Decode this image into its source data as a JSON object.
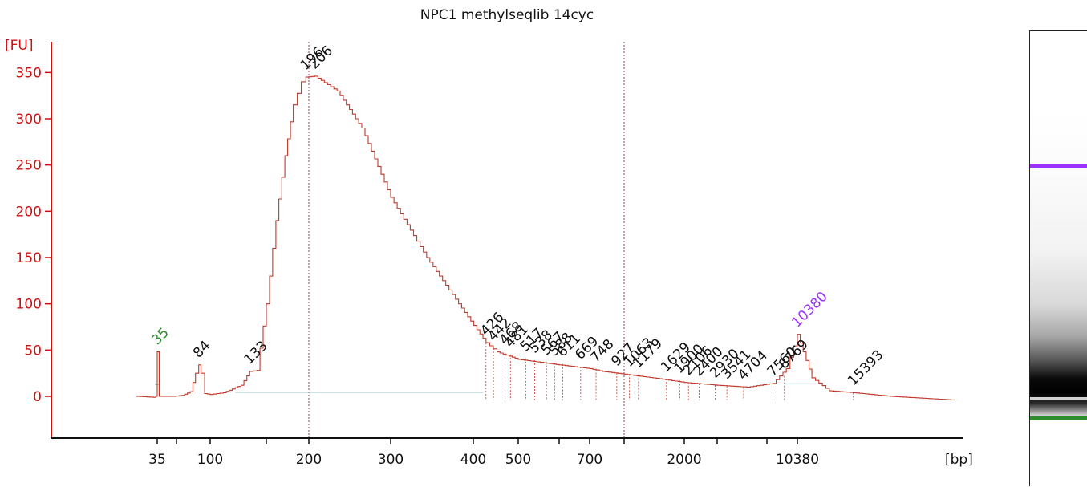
{
  "chart_data": {
    "type": "line",
    "title": "NPC1 methylseqlib 14cyc",
    "ylabel": "[FU]",
    "xlabel": "[bp]",
    "ylim": [
      -45,
      370
    ],
    "yticks": [
      0,
      50,
      100,
      150,
      200,
      250,
      300,
      350
    ],
    "x_scale": "non-linear (electrophoresis migration)",
    "xtick_labels": [
      "35",
      "100",
      "200",
      "300",
      "400",
      "500",
      "700",
      "2000",
      "10380"
    ],
    "xtick_marks_bp": [
      35,
      60,
      100,
      150,
      200,
      300,
      400,
      500,
      600,
      700,
      1000,
      2000,
      3000,
      7000,
      10380
    ],
    "guide_lines_bp": [
      200,
      1000
    ],
    "series": [
      {
        "color": "#c0392b",
        "points_bp_fu": [
          [
            15,
            0
          ],
          [
            30,
            -1
          ],
          [
            33,
            0
          ],
          [
            35,
            48
          ],
          [
            37,
            0
          ],
          [
            55,
            0
          ],
          [
            65,
            1
          ],
          [
            74,
            5
          ],
          [
            80,
            25
          ],
          [
            84,
            34
          ],
          [
            87,
            25
          ],
          [
            92,
            3
          ],
          [
            100,
            2
          ],
          [
            110,
            4
          ],
          [
            125,
            12
          ],
          [
            133,
            27
          ],
          [
            140,
            28
          ],
          [
            150,
            100
          ],
          [
            160,
            190
          ],
          [
            170,
            260
          ],
          [
            180,
            315
          ],
          [
            190,
            340
          ],
          [
            196,
            345
          ],
          [
            206,
            346
          ],
          [
            230,
            330
          ],
          [
            260,
            290
          ],
          [
            300,
            215
          ],
          [
            340,
            150
          ],
          [
            380,
            100
          ],
          [
            426,
            58
          ],
          [
            450,
            48
          ],
          [
            500,
            40
          ],
          [
            600,
            34
          ],
          [
            700,
            30
          ],
          [
            800,
            27
          ],
          [
            1000,
            24
          ],
          [
            1500,
            19
          ],
          [
            2000,
            15
          ],
          [
            3000,
            12
          ],
          [
            5000,
            10
          ],
          [
            7560,
            14
          ],
          [
            9000,
            30
          ],
          [
            10380,
            67
          ],
          [
            11500,
            20
          ],
          [
            13000,
            6
          ],
          [
            15393,
            4
          ],
          [
            20000,
            0
          ],
          [
            30000,
            -4
          ]
        ]
      }
    ],
    "marker": {
      "lower": "35",
      "upper": "10380",
      "lower_color": "#2e8b2e",
      "upper_color": "#9b30ff"
    },
    "peak_labels": [
      {
        "text": "35",
        "bp": 35,
        "fu": 48,
        "color": "#2e8b2e"
      },
      {
        "text": "84",
        "bp": 84,
        "fu": 34,
        "color": "#111111"
      },
      {
        "text": "133",
        "bp": 133,
        "fu": 27,
        "color": "#111111"
      },
      {
        "text": "196",
        "bp": 196,
        "fu": 345,
        "color": "#111111"
      },
      {
        "text": "206",
        "bp": 206,
        "fu": 346,
        "color": "#111111"
      },
      {
        "text": "426",
        "bp": 426,
        "fu": 58,
        "color": "#111111"
      },
      {
        "text": "442",
        "bp": 442,
        "fu": 52,
        "color": "#111111"
      },
      {
        "text": "468",
        "bp": 468,
        "fu": 48,
        "color": "#111111"
      },
      {
        "text": "481",
        "bp": 481,
        "fu": 45,
        "color": "#111111"
      },
      {
        "text": "517",
        "bp": 517,
        "fu": 41,
        "color": "#111111"
      },
      {
        "text": "538",
        "bp": 538,
        "fu": 39,
        "color": "#111111"
      },
      {
        "text": "567",
        "bp": 567,
        "fu": 37,
        "color": "#111111"
      },
      {
        "text": "588",
        "bp": 588,
        "fu": 36,
        "color": "#111111"
      },
      {
        "text": "611",
        "bp": 611,
        "fu": 35,
        "color": "#111111"
      },
      {
        "text": "669",
        "bp": 669,
        "fu": 32,
        "color": "#111111"
      },
      {
        "text": "748",
        "bp": 748,
        "fu": 29,
        "color": "#111111"
      },
      {
        "text": "927",
        "bp": 927,
        "fu": 25,
        "color": "#111111"
      },
      {
        "text": "1063",
        "bp": 1063,
        "fu": 24,
        "color": "#111111"
      },
      {
        "text": "1179",
        "bp": 1179,
        "fu": 23,
        "color": "#111111"
      },
      {
        "text": "1629",
        "bp": 1629,
        "fu": 19,
        "color": "#111111"
      },
      {
        "text": "1900",
        "bp": 1900,
        "fu": 17,
        "color": "#111111"
      },
      {
        "text": "2106",
        "bp": 2106,
        "fu": 15,
        "color": "#111111"
      },
      {
        "text": "2400",
        "bp": 2400,
        "fu": 14,
        "color": "#111111"
      },
      {
        "text": "2930",
        "bp": 2930,
        "fu": 12,
        "color": "#111111"
      },
      {
        "text": "3541",
        "bp": 3541,
        "fu": 11,
        "color": "#111111"
      },
      {
        "text": "4704",
        "bp": 4704,
        "fu": 10,
        "color": "#111111"
      },
      {
        "text": "7560",
        "bp": 7560,
        "fu": 14,
        "color": "#111111"
      },
      {
        "text": "8769",
        "bp": 8769,
        "fu": 22,
        "color": "#111111"
      },
      {
        "text": "10380",
        "bp": 10380,
        "fu": 67,
        "color": "#9b30ff"
      },
      {
        "text": "15393",
        "bp": 15393,
        "fu": 4,
        "color": "#111111"
      }
    ]
  },
  "gel": {
    "upper_marker_color": "#9b30ff",
    "lower_marker_color": "#2e8b2e"
  }
}
